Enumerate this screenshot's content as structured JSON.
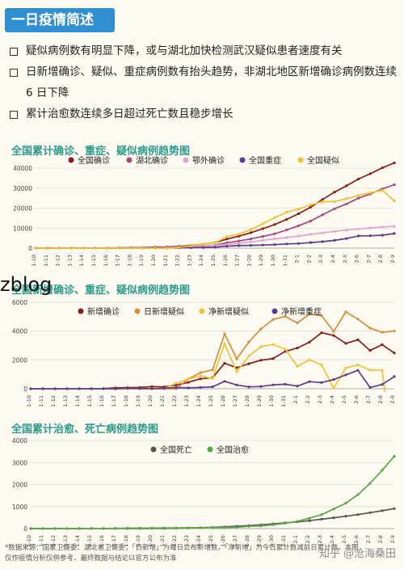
{
  "header": {
    "title": "一日疫情简述"
  },
  "bullets": [
    "疑似病例数有明显下降，或与湖北加快检测武汉疑似患者速度有关",
    "日新增确诊、疑似、重症病例数有抬头趋势，非湖北地区新增确诊病例数连续 6 日下降",
    "累计治愈数连续多日超过死亡数且稳步增长"
  ],
  "watermark": "zblog",
  "footer": {
    "note": "*数据来源：国家卫健委、湖北省卫健委；「日新增」为每日公布新增数，「净新增」为今日累计数减前日累计数。本图仅作疫情分析仅供参考，最终数据与结论以官方公布为准",
    "signature": "知乎 @沧海桑田"
  },
  "chart_data": [
    {
      "type": "line",
      "title": "全国累计确诊、重症、疑似病例趋势图",
      "ylim": [
        0,
        40000
      ],
      "yticks": [
        "0",
        "10000",
        "20000",
        "30000",
        "40000"
      ],
      "legend_position": "top",
      "categories": [
        "1-10",
        "1-11",
        "1-12",
        "1-13",
        "1-14",
        "1-15",
        "1-16",
        "1-17",
        "1-18",
        "1-19",
        "1-20",
        "1-21",
        "1-22",
        "1-23",
        "1-24",
        "1-25",
        "1-26",
        "1-27",
        "1-28",
        "1-29",
        "1-30",
        "1-31",
        "2-1",
        "2-2",
        "2-3",
        "2-4",
        "2-5",
        "2-6",
        "2-7",
        "2-8",
        "2-9"
      ],
      "series": [
        {
          "name": "全国确诊",
          "color": "#8b1a1a",
          "values": [
            41,
            41,
            41,
            41,
            41,
            45,
            62,
            121,
            198,
            291,
            440,
            571,
            830,
            1287,
            1975,
            2744,
            4515,
            5974,
            7711,
            9692,
            11791,
            14380,
            17205,
            20438,
            24324,
            28018,
            31161,
            34546,
            37198,
            40171,
            42638
          ]
        },
        {
          "name": "湖北确诊",
          "color": "#a8457a",
          "values": [
            41,
            41,
            41,
            41,
            41,
            45,
            62,
            121,
            198,
            270,
            375,
            444,
            549,
            729,
            1052,
            1423,
            2714,
            3554,
            4586,
            5806,
            7153,
            9074,
            11177,
            13522,
            16678,
            19665,
            22112,
            24953,
            27100,
            29631,
            31728
          ]
        },
        {
          "name": "鄂外确诊",
          "color": "#e3a3cf",
          "values": [
            0,
            0,
            0,
            0,
            0,
            0,
            0,
            0,
            0,
            21,
            65,
            127,
            281,
            558,
            923,
            1321,
            1801,
            2420,
            3125,
            3886,
            4638,
            5306,
            6028,
            6916,
            7646,
            8353,
            9049,
            9593,
            10098,
            10540,
            10910
          ]
        },
        {
          "name": "全国重症",
          "color": "#5e3b8e",
          "values": [
            0,
            0,
            0,
            0,
            0,
            0,
            0,
            0,
            35,
            55,
            63,
            95,
            177,
            237,
            324,
            461,
            976,
            1239,
            1370,
            1527,
            1795,
            2110,
            2296,
            2788,
            3219,
            3859,
            4821,
            6101,
            6188,
            6484,
            7333
          ]
        },
        {
          "name": "全国疑似",
          "color": "#f2c232",
          "values": [
            0,
            0,
            0,
            0,
            0,
            0,
            0,
            0,
            0,
            0,
            0,
            0,
            393,
            1072,
            1965,
            2684,
            5794,
            6973,
            9239,
            12167,
            15238,
            17988,
            19544,
            21558,
            23214,
            23260,
            24702,
            26359,
            27657,
            28942,
            23589
          ]
        }
      ]
    },
    {
      "type": "line",
      "title": "全国新增确诊、重症、疑似病例趋势图",
      "ylim": [
        0,
        6000
      ],
      "yticks": [
        "0",
        "2000",
        "4000",
        "6000"
      ],
      "legend_position": "top",
      "categories": [
        "1-10",
        "1-11",
        "1-12",
        "1-13",
        "1-14",
        "1-15",
        "1-16",
        "1-17",
        "1-18",
        "1-19",
        "1-20",
        "1-21",
        "1-22",
        "1-23",
        "1-24",
        "1-25",
        "1-26",
        "1-27",
        "1-28",
        "1-29",
        "1-30",
        "1-31",
        "2-1",
        "2-2",
        "2-3",
        "2-4",
        "2-5",
        "2-6",
        "2-7",
        "2-8",
        "2-9"
      ],
      "series": [
        {
          "name": "新增确诊",
          "color": "#8b1a1a",
          "values": [
            0,
            0,
            0,
            0,
            0,
            4,
            17,
            59,
            77,
            93,
            149,
            131,
            259,
            444,
            688,
            769,
            1771,
            1459,
            1737,
            1981,
            2099,
            2589,
            2825,
            3233,
            3886,
            3694,
            3143,
            3399,
            2656,
            3062,
            2478
          ]
        },
        {
          "name": "日新增疑似",
          "color": "#d98c3a",
          "values": [
            0,
            0,
            0,
            0,
            0,
            0,
            0,
            0,
            0,
            0,
            0,
            0,
            0,
            680,
            1118,
            1309,
            3806,
            2077,
            3248,
            4148,
            4812,
            5019,
            4562,
            5173,
            5072,
            3971,
            5328,
            4833,
            4214,
            3916,
            4008
          ]
        },
        {
          "name": "净新增疑似",
          "color": "#f2c232",
          "values": [
            0,
            0,
            0,
            0,
            0,
            0,
            0,
            0,
            0,
            0,
            0,
            0,
            393,
            679,
            893,
            719,
            3110,
            1179,
            2266,
            2928,
            3071,
            2750,
            1556,
            2014,
            1656,
            46,
            1442,
            1657,
            1298,
            1285,
            -5353
          ]
        },
        {
          "name": "净新增重症",
          "color": "#5e3b8e",
          "values": [
            0,
            0,
            0,
            0,
            0,
            0,
            0,
            0,
            35,
            20,
            8,
            32,
            82,
            60,
            87,
            137,
            515,
            263,
            131,
            157,
            268,
            315,
            186,
            492,
            431,
            640,
            962,
            1280,
            87,
            296,
            849
          ]
        }
      ]
    },
    {
      "type": "line",
      "title": "全国累计治愈、死亡病例趋势图",
      "ylim": [
        0,
        4000
      ],
      "yticks": [
        "0",
        "1000",
        "2000",
        "3000",
        "4000"
      ],
      "legend_position": "top",
      "categories": [
        "1-10",
        "1-11",
        "1-12",
        "1-13",
        "1-14",
        "1-15",
        "1-16",
        "1-17",
        "1-18",
        "1-19",
        "1-20",
        "1-21",
        "1-22",
        "1-23",
        "1-24",
        "1-25",
        "1-26",
        "1-27",
        "1-28",
        "1-29",
        "1-30",
        "1-31",
        "2-1",
        "2-2",
        "2-3",
        "2-4",
        "2-5",
        "2-6",
        "2-7",
        "2-8",
        "2-9"
      ],
      "series": [
        {
          "name": "全国死亡",
          "color": "#555555",
          "values": [
            1,
            1,
            1,
            1,
            1,
            2,
            2,
            2,
            3,
            3,
            6,
            9,
            17,
            25,
            41,
            56,
            80,
            106,
            132,
            170,
            213,
            259,
            304,
            361,
            425,
            490,
            563,
            636,
            722,
            811,
            908
          ]
        },
        {
          "name": "全国治愈",
          "color": "#5aa845",
          "values": [
            2,
            2,
            2,
            3,
            5,
            7,
            9,
            12,
            17,
            21,
            25,
            28,
            34,
            38,
            39,
            49,
            51,
            60,
            103,
            124,
            171,
            243,
            328,
            475,
            632,
            892,
            1153,
            1540,
            2050,
            2649,
            3281
          ]
        }
      ]
    }
  ]
}
